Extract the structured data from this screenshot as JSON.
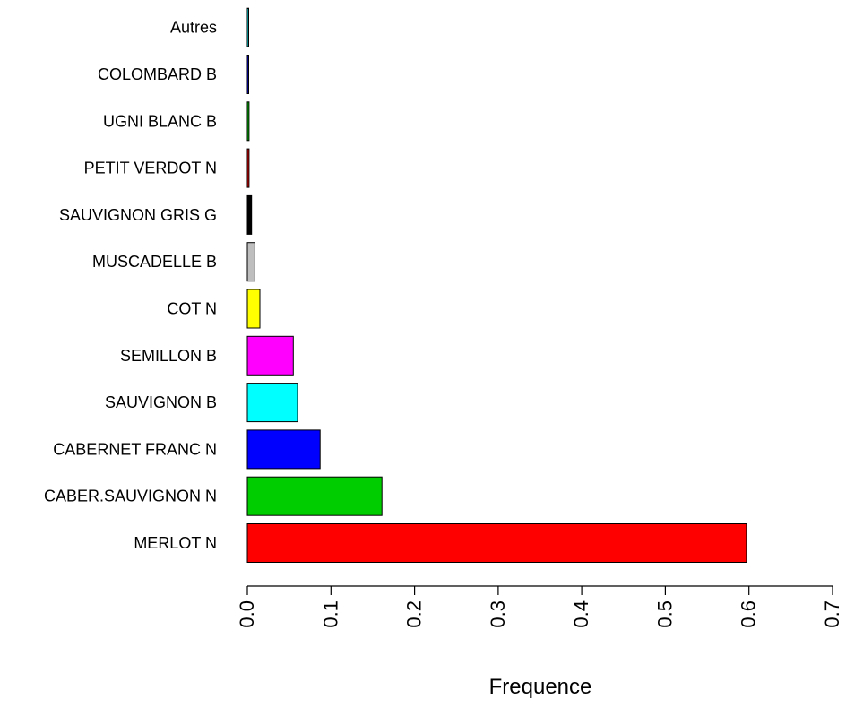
{
  "chart_data": {
    "type": "bar",
    "orientation": "horizontal",
    "title": "",
    "xlabel": "Frequence",
    "ylabel": "",
    "xlim": [
      0,
      0.7
    ],
    "x_ticks": [
      "0.0",
      "0.1",
      "0.2",
      "0.3",
      "0.4",
      "0.5",
      "0.6",
      "0.7"
    ],
    "grid": false,
    "legend": "none",
    "categories": [
      "MERLOT N",
      "CABER.SAUVIGNON N",
      "CABERNET FRANC N",
      "SAUVIGNON B",
      "SEMILLON B",
      "COT N",
      "MUSCADELLE B",
      "SAUVIGNON GRIS G",
      "PETIT VERDOT N",
      "UGNI BLANC B",
      "COLOMBARD B",
      "Autres"
    ],
    "values": [
      0.597,
      0.161,
      0.087,
      0.06,
      0.055,
      0.015,
      0.009,
      0.005,
      0.002,
      0.002,
      0.001,
      0.001
    ],
    "colors": [
      "#ff0000",
      "#00cd00",
      "#0000ff",
      "#00ffff",
      "#ff00ff",
      "#ffff00",
      "#bebebe",
      "#000000",
      "#ff0000",
      "#00cd00",
      "#0000ff",
      "#00ffff"
    ]
  }
}
